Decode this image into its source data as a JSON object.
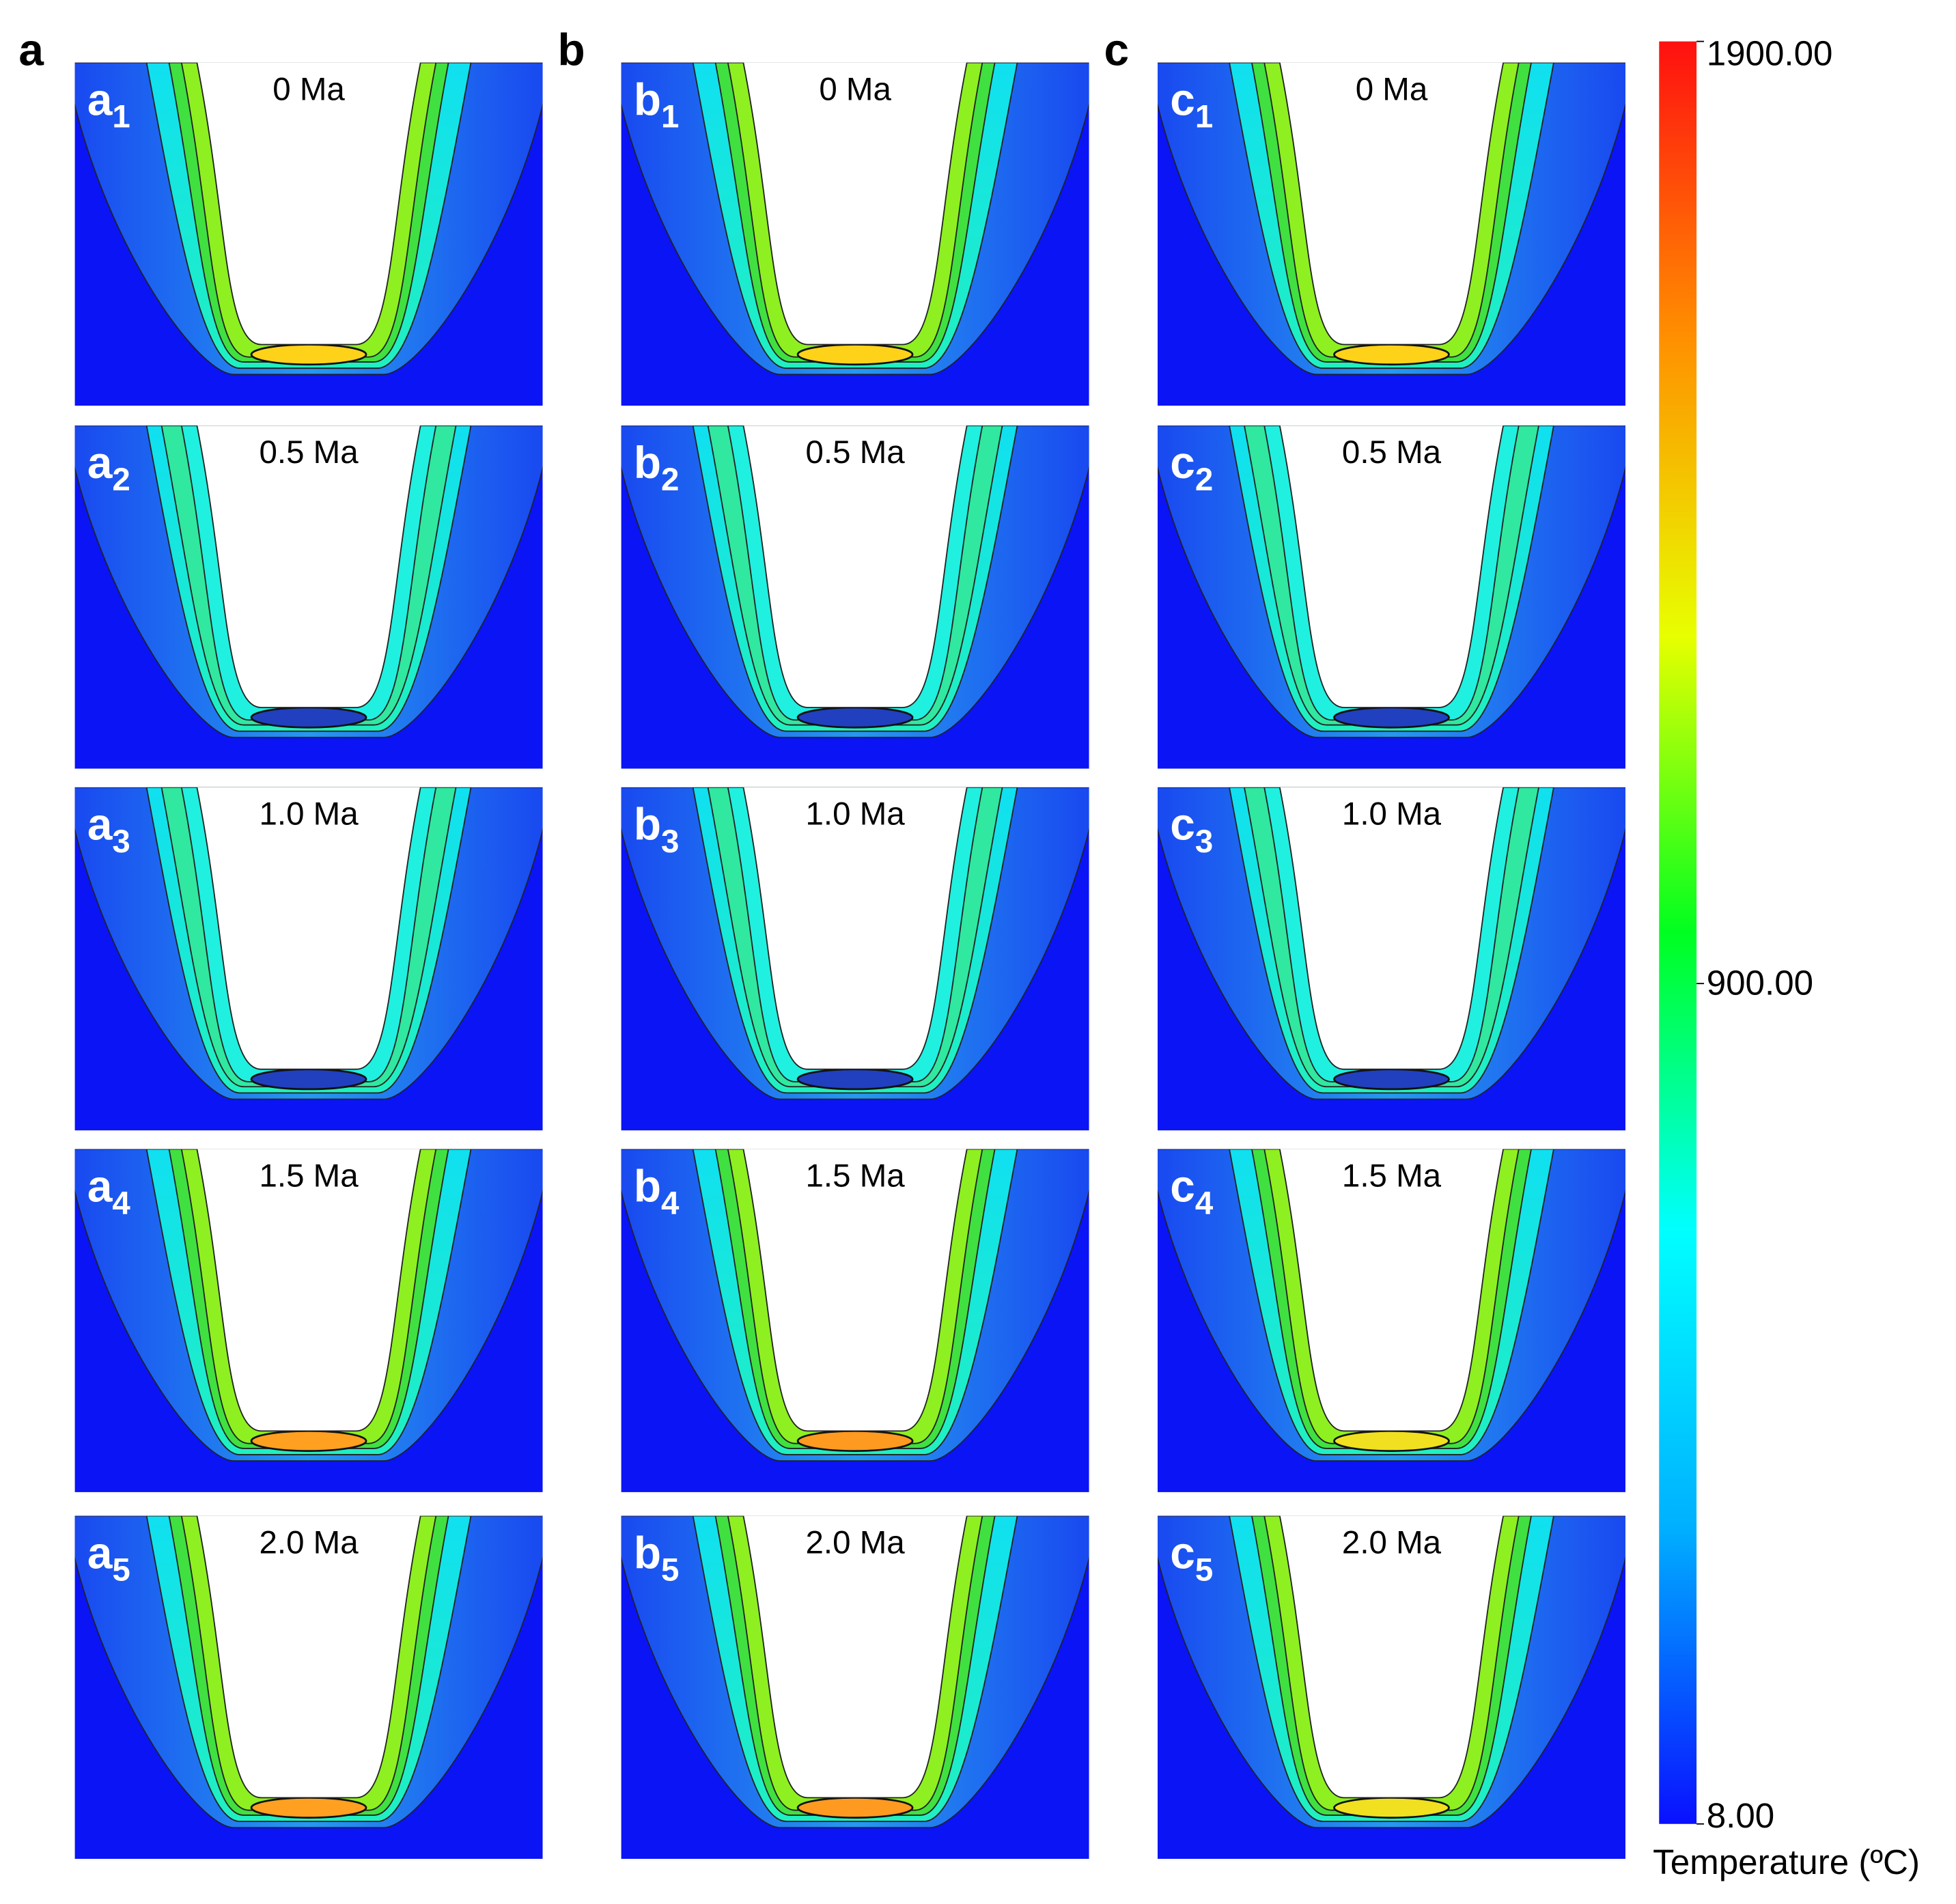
{
  "chart_data": {
    "type": "contour",
    "columns": [
      {
        "label": "a",
        "panels": [
          {
            "label": "a",
            "index": "1",
            "time": "0 Ma",
            "tip_color": "#ffd21a"
          },
          {
            "label": "a",
            "index": "2",
            "time": "0.5 Ma",
            "tip_color": "#2040c0"
          },
          {
            "label": "a",
            "index": "3",
            "time": "1.0 Ma",
            "tip_color": "#2040c0"
          },
          {
            "label": "a",
            "index": "4",
            "time": "1.5 Ma",
            "tip_color": "#ffa020"
          },
          {
            "label": "a",
            "index": "5",
            "time": "2.0 Ma",
            "tip_color": "#ffa020"
          }
        ]
      },
      {
        "label": "b",
        "panels": [
          {
            "label": "b",
            "index": "1",
            "time": "0 Ma",
            "tip_color": "#ffd21a"
          },
          {
            "label": "b",
            "index": "2",
            "time": "0.5 Ma",
            "tip_color": "#2040c0"
          },
          {
            "label": "b",
            "index": "3",
            "time": "1.0 Ma",
            "tip_color": "#2040c0"
          },
          {
            "label": "b",
            "index": "4",
            "time": "1.5 Ma",
            "tip_color": "#ff9a20"
          },
          {
            "label": "b",
            "index": "5",
            "time": "2.0 Ma",
            "tip_color": "#ff9a20"
          }
        ]
      },
      {
        "label": "c",
        "panels": [
          {
            "label": "c",
            "index": "1",
            "time": "0 Ma",
            "tip_color": "#ffd21a"
          },
          {
            "label": "c",
            "index": "2",
            "time": "0.5 Ma",
            "tip_color": "#2040c0"
          },
          {
            "label": "c",
            "index": "3",
            "time": "1.0 Ma",
            "tip_color": "#2040c0"
          },
          {
            "label": "c",
            "index": "4",
            "time": "1.5 Ma",
            "tip_color": "#f0e020"
          },
          {
            "label": "c",
            "index": "5",
            "time": "2.0 Ma",
            "tip_color": "#f0e020"
          }
        ]
      }
    ],
    "colorbar": {
      "title": "Temperature (ºC)",
      "lim": [
        8,
        1900
      ],
      "ticks": [
        {
          "value": 1900,
          "label": "1900.00"
        },
        {
          "value": 900,
          "label": "900.00"
        },
        {
          "value": 8,
          "label": "8.00"
        }
      ],
      "colors": [
        "#0a10ff",
        "#00b0ff",
        "#00ffff",
        "#00ff20",
        "#e8ff00",
        "#ff9000",
        "#ff1010"
      ]
    }
  }
}
